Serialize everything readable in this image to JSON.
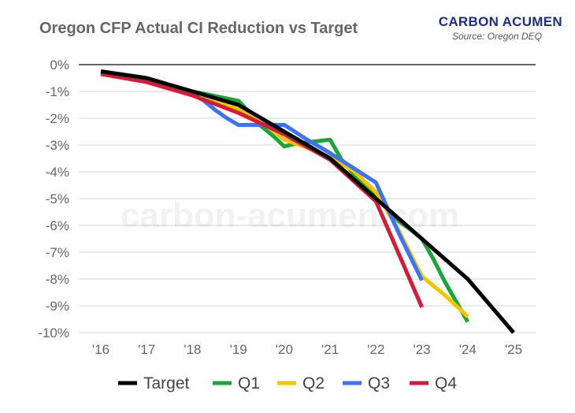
{
  "header": {
    "title": "Oregon CFP Actual CI Reduction vs Target",
    "brand": "CARBON ACUMEN",
    "source": "Source: Oregon DEQ"
  },
  "watermark": "carbon-acumen.com",
  "chart_data": {
    "type": "line",
    "title": "Oregon CFP Actual CI Reduction vs Target",
    "xlabel": "",
    "ylabel": "",
    "x_ticks": [
      "'16",
      "'17",
      "'18",
      "'19",
      "'20",
      "'21",
      "'22",
      "'23",
      "'24",
      "'25"
    ],
    "y_ticks": [
      "0%",
      "-1%",
      "-2%",
      "-3%",
      "-4%",
      "-5%",
      "-6%",
      "-7%",
      "-8%",
      "-9%",
      "-10%"
    ],
    "ylim": [
      -10,
      0
    ],
    "xlim": [
      2016,
      2025
    ],
    "grid": true,
    "legend_position": "bottom",
    "series": [
      {
        "name": "Target",
        "color": "#000000",
        "points": [
          [
            2016,
            -0.25
          ],
          [
            2017,
            -0.5
          ],
          [
            2018,
            -1.0
          ],
          [
            2019,
            -1.5
          ],
          [
            2020,
            -2.5
          ],
          [
            2021,
            -3.5
          ],
          [
            2022,
            -5.0
          ],
          [
            2023,
            -6.5
          ],
          [
            2024,
            -8.0
          ],
          [
            2025,
            -10.0
          ]
        ]
      },
      {
        "name": "Q1",
        "color": "#1aa638",
        "points": [
          [
            2016,
            -0.3
          ],
          [
            2017,
            -0.6
          ],
          [
            2018,
            -1.0
          ],
          [
            2019,
            -1.35
          ],
          [
            2019.25,
            -1.8
          ],
          [
            2019.5,
            -2.3
          ],
          [
            2019.75,
            -2.65
          ],
          [
            2020,
            -3.05
          ],
          [
            2020.25,
            -2.95
          ],
          [
            2020.5,
            -2.9
          ],
          [
            2020.75,
            -2.85
          ],
          [
            2021,
            -2.8
          ],
          [
            2021.25,
            -3.55
          ],
          [
            2021.5,
            -4.05
          ],
          [
            2021.75,
            -4.55
          ],
          [
            2022,
            -4.9
          ],
          [
            2022.25,
            -5.4
          ],
          [
            2022.5,
            -5.85
          ],
          [
            2022.75,
            -6.15
          ],
          [
            2023,
            -6.5
          ],
          [
            2023.25,
            -7.25
          ],
          [
            2023.5,
            -8.1
          ],
          [
            2023.75,
            -8.85
          ],
          [
            2024,
            -9.6
          ]
        ]
      },
      {
        "name": "Q2",
        "color": "#f5c400",
        "points": [
          [
            2016,
            -0.3
          ],
          [
            2017,
            -0.6
          ],
          [
            2018,
            -1.0
          ],
          [
            2019,
            -1.65
          ],
          [
            2019.5,
            -2.1
          ],
          [
            2020,
            -2.8
          ],
          [
            2020.5,
            -3.1
          ],
          [
            2021,
            -3.45
          ],
          [
            2021.5,
            -3.95
          ],
          [
            2022,
            -4.75
          ],
          [
            2022.5,
            -6.2
          ],
          [
            2023,
            -7.9
          ],
          [
            2023.5,
            -8.6
          ],
          [
            2024,
            -9.4
          ]
        ]
      },
      {
        "name": "Q3",
        "color": "#3b73f2",
        "points": [
          [
            2016,
            -0.3
          ],
          [
            2017,
            -0.6
          ],
          [
            2018,
            -1.1
          ],
          [
            2018.25,
            -1.35
          ],
          [
            2018.5,
            -1.7
          ],
          [
            2018.75,
            -2.0
          ],
          [
            2019,
            -2.25
          ],
          [
            2019.5,
            -2.25
          ],
          [
            2020,
            -2.25
          ],
          [
            2020.5,
            -2.8
          ],
          [
            2021,
            -3.3
          ],
          [
            2021.5,
            -3.85
          ],
          [
            2022,
            -4.4
          ],
          [
            2022.5,
            -6.3
          ],
          [
            2023,
            -8.05
          ]
        ]
      },
      {
        "name": "Q4",
        "color": "#d11d3a",
        "points": [
          [
            2016,
            -0.35
          ],
          [
            2017,
            -0.65
          ],
          [
            2018,
            -1.15
          ],
          [
            2019,
            -1.8
          ],
          [
            2020,
            -2.6
          ],
          [
            2021,
            -3.55
          ],
          [
            2022,
            -5.1
          ],
          [
            2023,
            -9.05
          ]
        ]
      }
    ]
  }
}
